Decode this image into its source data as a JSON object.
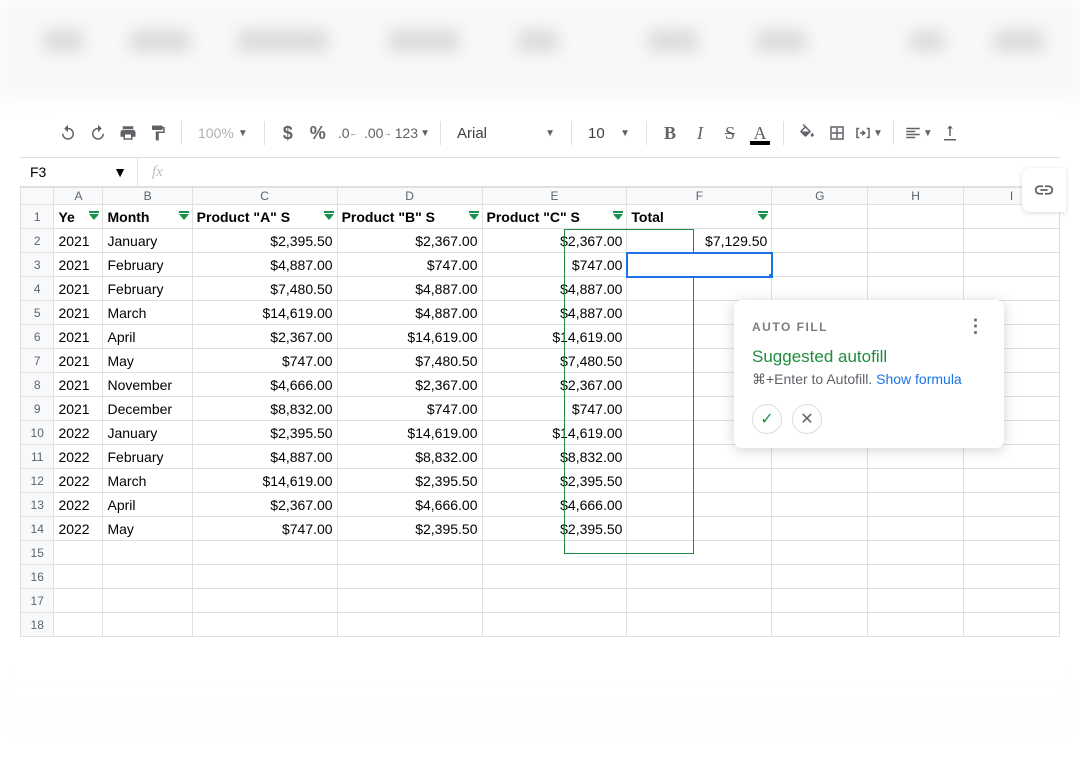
{
  "toolbar": {
    "zoom": "100%",
    "format123": "123",
    "font": "Arial",
    "fontSize": "10"
  },
  "namebox": {
    "cell": "F3",
    "fx": "fx"
  },
  "columns": [
    "A",
    "B",
    "C",
    "D",
    "E",
    "F",
    "G",
    "H",
    "I"
  ],
  "colWidths": {
    "A": 44,
    "B": 80,
    "C": 130,
    "D": 130,
    "E": 130,
    "F": 130,
    "G": 86,
    "H": 86,
    "I": 86
  },
  "headers": {
    "A": "Ye",
    "B": "Month",
    "C": "Product \"A\" S",
    "D": "Product \"B\" S",
    "E": "Product \"C\" S",
    "F": "Total"
  },
  "activeColumn": "F",
  "selection": {
    "row": 3,
    "col": "F"
  },
  "autofillRange": {
    "col": "F",
    "fromRow": 2,
    "toRow": 14
  },
  "totalRows": 18,
  "rows": [
    {
      "A": "2021",
      "B": "January",
      "C": "$2,395.50",
      "D": "$2,367.00",
      "E": "$2,367.00",
      "F": "$7,129.50"
    },
    {
      "A": "2021",
      "B": "February",
      "C": "$4,887.00",
      "D": "$747.00",
      "E": "$747.00",
      "F": ""
    },
    {
      "A": "2021",
      "B": "February",
      "C": "$7,480.50",
      "D": "$4,887.00",
      "E": "$4,887.00",
      "F": ""
    },
    {
      "A": "2021",
      "B": "March",
      "C": "$14,619.00",
      "D": "$4,887.00",
      "E": "$4,887.00",
      "F": ""
    },
    {
      "A": "2021",
      "B": "April",
      "C": "$2,367.00",
      "D": "$14,619.00",
      "E": "$14,619.00",
      "F": ""
    },
    {
      "A": "2021",
      "B": "May",
      "C": "$747.00",
      "D": "$7,480.50",
      "E": "$7,480.50",
      "F": ""
    },
    {
      "A": "2021",
      "B": "November",
      "C": "$4,666.00",
      "D": "$2,367.00",
      "E": "$2,367.00",
      "F": ""
    },
    {
      "A": "2021",
      "B": "December",
      "C": "$8,832.00",
      "D": "$747.00",
      "E": "$747.00",
      "F": ""
    },
    {
      "A": "2022",
      "B": "January",
      "C": "$2,395.50",
      "D": "$14,619.00",
      "E": "$14,619.00",
      "F": ""
    },
    {
      "A": "2022",
      "B": "February",
      "C": "$4,887.00",
      "D": "$8,832.00",
      "E": "$8,832.00",
      "F": ""
    },
    {
      "A": "2022",
      "B": "March",
      "C": "$14,619.00",
      "D": "$2,395.50",
      "E": "$2,395.50",
      "F": ""
    },
    {
      "A": "2022",
      "B": "April",
      "C": "$2,367.00",
      "D": "$4,666.00",
      "E": "$4,666.00",
      "F": ""
    },
    {
      "A": "2022",
      "B": "May",
      "C": "$747.00",
      "D": "$2,395.50",
      "E": "$2,395.50",
      "F": ""
    }
  ],
  "popup": {
    "title": "AUTO FILL",
    "headline": "Suggested autofill",
    "hint": "⌘+Enter to Autofill. ",
    "link": "Show formula"
  },
  "colors": {
    "accent": "#1e8e3e",
    "selection": "#1a73e8",
    "headerBg": "#f8f9fa",
    "border": "#e0e0e0",
    "activeColBg": "#e6efe9",
    "autofillBg": "#f2faf5",
    "link": "#1a73e8"
  }
}
